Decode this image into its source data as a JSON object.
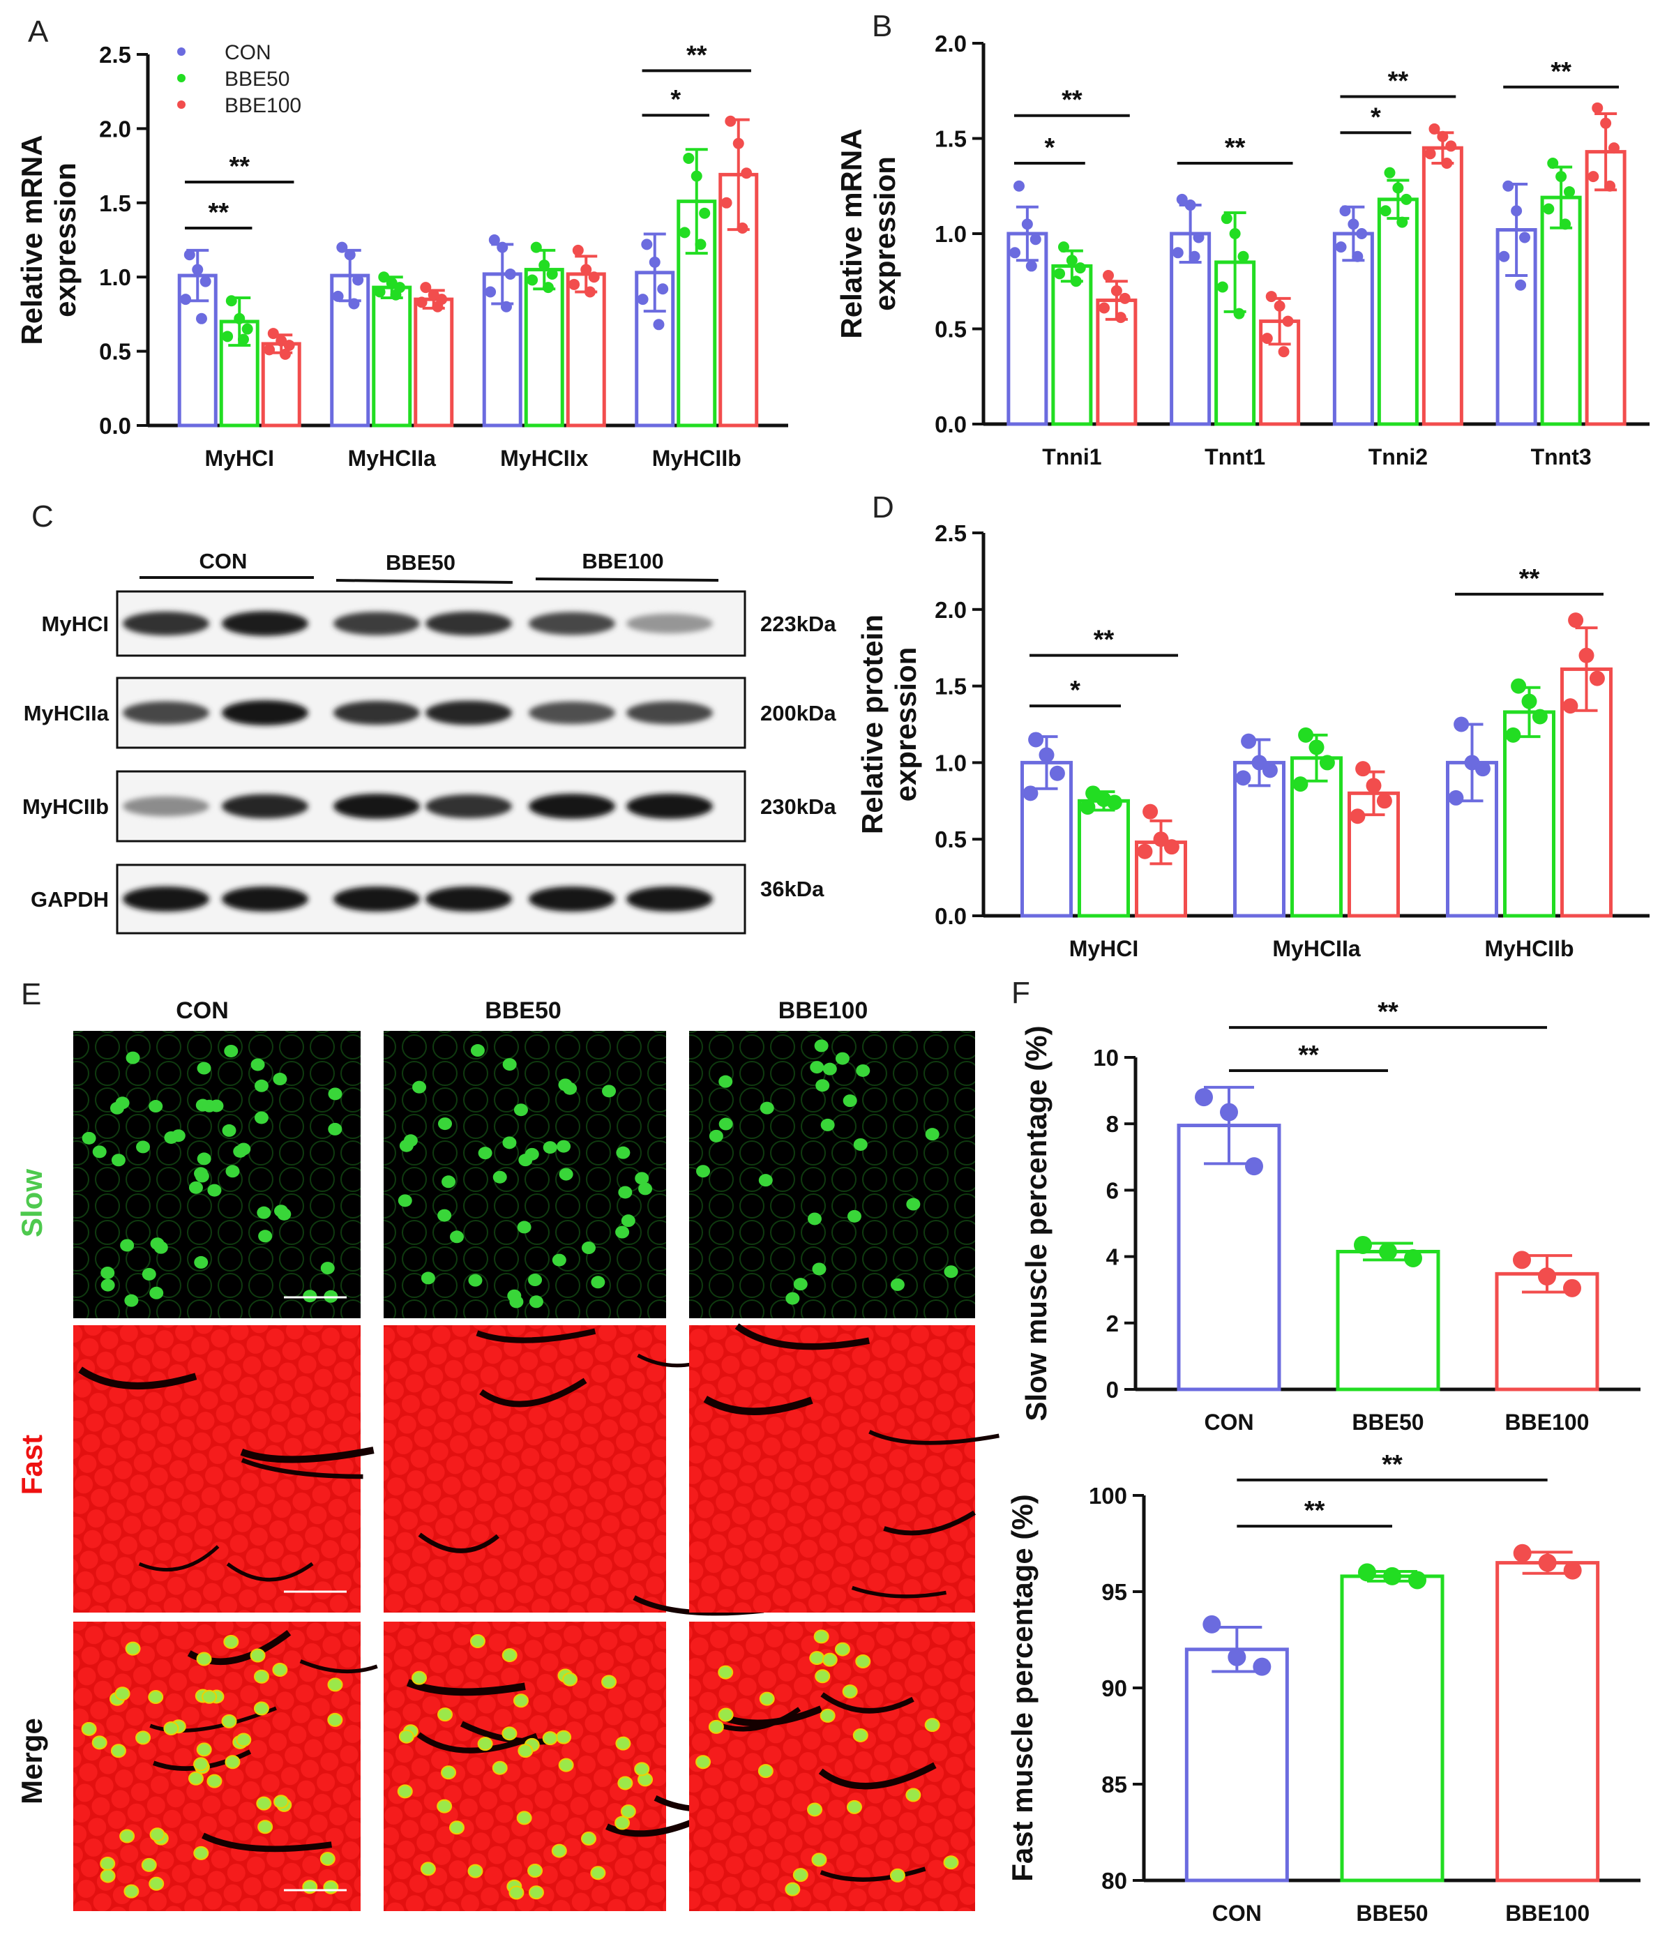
{
  "colors": {
    "CON": "#6b6bdf",
    "BBE50": "#22dd22",
    "BBE100": "#f24d4d",
    "axis": "#111111"
  },
  "panels": {
    "A": {
      "label": "A"
    },
    "B": {
      "label": "B"
    },
    "C": {
      "label": "C"
    },
    "D": {
      "label": "D"
    },
    "E": {
      "label": "E"
    },
    "F": {
      "label": "F"
    }
  },
  "legend": [
    "CON",
    "BBE50",
    "BBE100"
  ],
  "chart_data": [
    {
      "id": "A",
      "type": "bar",
      "ylabel": "Relative mRNA expression",
      "ylabel_lines": [
        "Relative mRNA",
        "expression"
      ],
      "ylim": [
        0,
        2.5
      ],
      "yticks": [
        "0.0",
        "0.5",
        "1.0",
        "1.5",
        "2.0",
        "2.5"
      ],
      "ytick_values": [
        0,
        0.5,
        1.0,
        1.5,
        2.0,
        2.5
      ],
      "categories": [
        "MyHCI",
        "MyHCIIa",
        "MyHCIIx",
        "MyHCIIb"
      ],
      "series": [
        {
          "name": "CON",
          "values": [
            1.01,
            1.01,
            1.02,
            1.03
          ],
          "errors": [
            0.17,
            0.17,
            0.2,
            0.26
          ],
          "points": [
            [
              1.15,
              1.05,
              0.97,
              0.85,
              0.72
            ],
            [
              1.2,
              1.15,
              0.98,
              0.87,
              0.82
            ],
            [
              1.25,
              1.2,
              1.02,
              0.9,
              0.8
            ],
            [
              1.22,
              1.1,
              0.92,
              0.85,
              0.68
            ]
          ]
        },
        {
          "name": "BBE50",
          "values": [
            0.7,
            0.93,
            1.05,
            1.51
          ],
          "errors": [
            0.16,
            0.07,
            0.13,
            0.35
          ],
          "points": [
            [
              0.84,
              0.72,
              0.65,
              0.6,
              0.58
            ],
            [
              1.0,
              0.96,
              0.93,
              0.9,
              0.88
            ],
            [
              1.2,
              1.08,
              1.02,
              0.98,
              0.93
            ],
            [
              1.8,
              1.68,
              1.43,
              1.3,
              1.22
            ]
          ]
        },
        {
          "name": "BBE100",
          "values": [
            0.55,
            0.85,
            1.02,
            1.69
          ],
          "errors": [
            0.06,
            0.06,
            0.12,
            0.37
          ],
          "points": [
            [
              0.62,
              0.57,
              0.54,
              0.51,
              0.48
            ],
            [
              0.93,
              0.88,
              0.85,
              0.83,
              0.8
            ],
            [
              1.18,
              1.05,
              1.0,
              0.95,
              0.9
            ],
            [
              2.05,
              1.9,
              1.7,
              1.5,
              1.33
            ]
          ]
        }
      ],
      "significance": [
        {
          "cat": 0,
          "from": 0,
          "to": 1,
          "label": "**",
          "y": 1.33
        },
        {
          "cat": 0,
          "from": 0,
          "to": 2,
          "label": "**",
          "y": 1.64
        },
        {
          "cat": 3,
          "from": 0,
          "to": 1,
          "label": "*",
          "y": 2.09
        },
        {
          "cat": 3,
          "from": 0,
          "to": 2,
          "label": "**",
          "y": 2.39
        }
      ]
    },
    {
      "id": "B",
      "type": "bar",
      "ylabel": "Relative mRNA expression",
      "ylabel_lines": [
        "Relative mRNA",
        "expression"
      ],
      "ylim": [
        0,
        2.0
      ],
      "yticks": [
        "0.0",
        "0.5",
        "1.0",
        "1.5",
        "2.0"
      ],
      "ytick_values": [
        0,
        0.5,
        1.0,
        1.5,
        2.0
      ],
      "categories": [
        "Tnni1",
        "Tnnt1",
        "Tnni2",
        "Tnnt3"
      ],
      "series": [
        {
          "name": "CON",
          "values": [
            1.0,
            1.0,
            1.0,
            1.02
          ],
          "errors": [
            0.14,
            0.15,
            0.14,
            0.24
          ],
          "points": [
            [
              1.25,
              1.05,
              0.97,
              0.9,
              0.83
            ],
            [
              1.18,
              1.15,
              0.98,
              0.9,
              0.88
            ],
            [
              1.12,
              1.05,
              1.0,
              0.93,
              0.88
            ],
            [
              1.25,
              1.12,
              0.98,
              0.88,
              0.73
            ]
          ]
        },
        {
          "name": "BBE50",
          "values": [
            0.83,
            0.85,
            1.18,
            1.19
          ],
          "errors": [
            0.08,
            0.26,
            0.1,
            0.16
          ],
          "points": [
            [
              0.93,
              0.86,
              0.82,
              0.79,
              0.75
            ],
            [
              1.08,
              1.0,
              0.88,
              0.72,
              0.58
            ],
            [
              1.32,
              1.24,
              1.18,
              1.12,
              1.06
            ],
            [
              1.37,
              1.3,
              1.22,
              1.13,
              1.05
            ]
          ]
        },
        {
          "name": "BBE100",
          "values": [
            0.65,
            0.54,
            1.45,
            1.43
          ],
          "errors": [
            0.1,
            0.12,
            0.08,
            0.2
          ],
          "points": [
            [
              0.78,
              0.7,
              0.66,
              0.61,
              0.56
            ],
            [
              0.67,
              0.62,
              0.54,
              0.45,
              0.38
            ],
            [
              1.55,
              1.51,
              1.46,
              1.42,
              1.37
            ],
            [
              1.66,
              1.58,
              1.45,
              1.3,
              1.25
            ]
          ]
        }
      ],
      "significance": [
        {
          "cat": 0,
          "from": 0,
          "to": 1,
          "label": "*",
          "y": 1.37
        },
        {
          "cat": 0,
          "from": 0,
          "to": 2,
          "label": "**",
          "y": 1.62
        },
        {
          "cat": 1,
          "from": 0,
          "to": 2,
          "label": "**",
          "y": 1.37
        },
        {
          "cat": 2,
          "from": 0,
          "to": 1,
          "label": "*",
          "y": 1.53
        },
        {
          "cat": 2,
          "from": 0,
          "to": 2,
          "label": "**",
          "y": 1.72
        },
        {
          "cat": 3,
          "from": 0,
          "to": 2,
          "label": "**",
          "y": 1.77
        }
      ]
    },
    {
      "id": "D",
      "type": "bar",
      "ylabel": "Relative protein expression",
      "ylabel_lines": [
        "Relative protein",
        "expression"
      ],
      "ylim": [
        0,
        2.5
      ],
      "yticks": [
        "0.0",
        "0.5",
        "1.0",
        "1.5",
        "2.0",
        "2.5"
      ],
      "ytick_values": [
        0,
        0.5,
        1.0,
        1.5,
        2.0,
        2.5
      ],
      "categories": [
        "MyHCI",
        "MyHCIIa",
        "MyHCIIb"
      ],
      "series": [
        {
          "name": "CON",
          "values": [
            1.0,
            1.0,
            1.0
          ],
          "errors": [
            0.17,
            0.15,
            0.25
          ],
          "points": [
            [
              1.15,
              1.05,
              0.93,
              0.8
            ],
            [
              1.14,
              1.0,
              0.95,
              0.9
            ],
            [
              1.25,
              1.0,
              0.96,
              0.77
            ]
          ]
        },
        {
          "name": "BBE50",
          "values": [
            0.75,
            1.03,
            1.33
          ],
          "errors": [
            0.06,
            0.15,
            0.16
          ],
          "points": [
            [
              0.8,
              0.76,
              0.74,
              0.71
            ],
            [
              1.18,
              1.1,
              1.0,
              0.86
            ],
            [
              1.5,
              1.4,
              1.3,
              1.18
            ]
          ]
        },
        {
          "name": "BBE100",
          "values": [
            0.48,
            0.8,
            1.61
          ],
          "errors": [
            0.14,
            0.14,
            0.27
          ],
          "points": [
            [
              0.68,
              0.5,
              0.45,
              0.42
            ],
            [
              0.96,
              0.85,
              0.75,
              0.65
            ],
            [
              1.93,
              1.7,
              1.55,
              1.37
            ]
          ]
        }
      ],
      "significance": [
        {
          "cat": 0,
          "from": 0,
          "to": 1,
          "label": "*",
          "y": 1.37
        },
        {
          "cat": 0,
          "from": 0,
          "to": 2,
          "label": "**",
          "y": 1.7
        },
        {
          "cat": 2,
          "from": 0,
          "to": 2,
          "label": "**",
          "y": 2.1
        }
      ]
    },
    {
      "id": "F1",
      "type": "bar",
      "ylabel": "Slow muscle percentage (%)",
      "ylim": [
        0,
        10
      ],
      "yticks": [
        "0",
        "2",
        "4",
        "6",
        "8",
        "10"
      ],
      "ytick_values": [
        0,
        2,
        4,
        6,
        8,
        10
      ],
      "categories": [
        "CON",
        "BBE50",
        "BBE100"
      ],
      "values": [
        7.95,
        4.15,
        3.48
      ],
      "errors": [
        1.15,
        0.25,
        0.55
      ],
      "points": [
        [
          8.8,
          8.35,
          6.72
        ],
        [
          4.35,
          4.15,
          3.95
        ],
        [
          3.9,
          3.4,
          3.05
        ]
      ],
      "significance": [
        {
          "from": 0,
          "to": 1,
          "label": "**",
          "y": 9.6
        },
        {
          "from": 0,
          "to": 2,
          "label": "**",
          "y": 10.9
        }
      ]
    },
    {
      "id": "F2",
      "type": "bar",
      "ylabel": "Fast muscle percentage (%)",
      "ylim": [
        80,
        100
      ],
      "yticks": [
        "80",
        "85",
        "90",
        "95",
        "100"
      ],
      "ytick_values": [
        80,
        85,
        90,
        95,
        100
      ],
      "categories": [
        "CON",
        "BBE50",
        "BBE100"
      ],
      "values": [
        92.0,
        95.8,
        96.5
      ],
      "errors": [
        1.15,
        0.25,
        0.55
      ],
      "points": [
        [
          93.3,
          91.6,
          91.1
        ],
        [
          96.0,
          95.8,
          95.6
        ],
        [
          97.0,
          96.5,
          96.1
        ]
      ],
      "significance": [
        {
          "from": 0,
          "to": 1,
          "label": "**",
          "y": 98.4
        },
        {
          "from": 0,
          "to": 2,
          "label": "**",
          "y": 100.8
        }
      ]
    }
  ],
  "western_blot": {
    "groups": [
      "CON",
      "BBE50",
      "BBE100"
    ],
    "rows": [
      {
        "name": "MyHCI",
        "size": "223kDa",
        "intensity": [
          0.85,
          0.95,
          0.8,
          0.85,
          0.75,
          0.35
        ]
      },
      {
        "name": "MyHCIIa",
        "size": "200kDa",
        "intensity": [
          0.75,
          1.0,
          0.85,
          0.9,
          0.7,
          0.75
        ]
      },
      {
        "name": "MyHCIIb",
        "size": "230kDa",
        "intensity": [
          0.4,
          0.9,
          1.0,
          0.85,
          1.0,
          1.0
        ]
      },
      {
        "name": "GAPDH",
        "size": "36kDa",
        "intensity": [
          1.0,
          1.0,
          1.0,
          1.0,
          1.0,
          1.0
        ]
      }
    ]
  },
  "immunofluorescence": {
    "columns": [
      "CON",
      "BBE50",
      "BBE100"
    ],
    "rows": [
      {
        "label": "Slow",
        "color": "#4ec94e"
      },
      {
        "label": "Fast",
        "color": "#ee1111"
      },
      {
        "label": "Merge",
        "color": "#111111"
      }
    ],
    "green_cell_counts": [
      46,
      38,
      24
    ]
  }
}
